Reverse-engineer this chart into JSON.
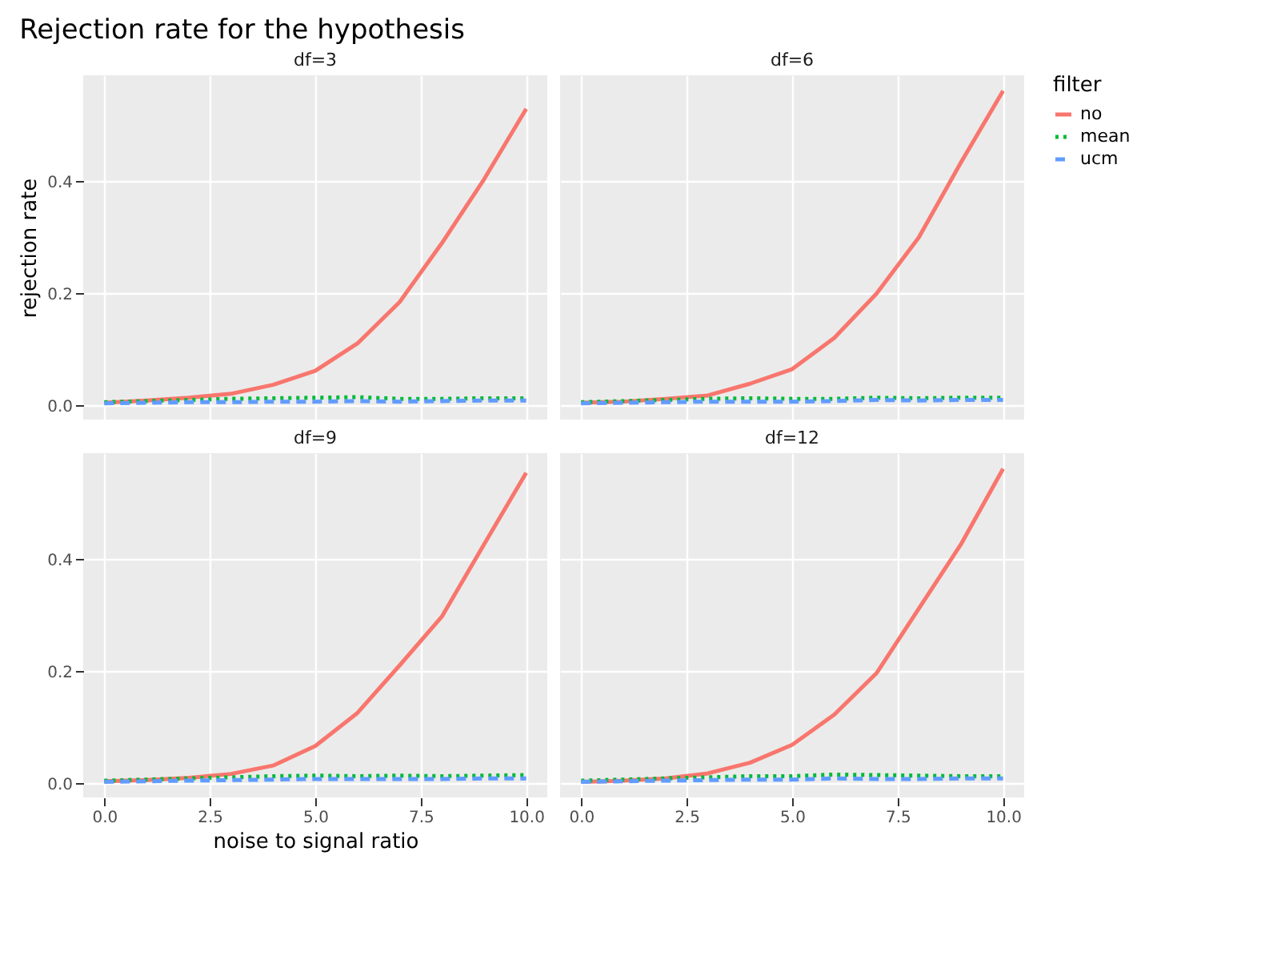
{
  "chart_data": [
    {
      "type": "line",
      "title": "Rejection rate for the hypothesis",
      "subtitle": "df=3",
      "ylabel": "rejection rate",
      "x": [
        0,
        1,
        2,
        3,
        4,
        5,
        6,
        7,
        8,
        9,
        10
      ],
      "xlim": [
        -0.5,
        10.5
      ],
      "ylim": [
        -0.025,
        0.59
      ],
      "xticks": [
        {
          "value": 0,
          "label": null
        },
        {
          "value": 2.5,
          "label": null
        },
        {
          "value": 5,
          "label": null
        },
        {
          "value": 7.5,
          "label": null
        },
        {
          "value": 10,
          "label": null
        }
      ],
      "yticks": [
        {
          "value": 0,
          "label": "0.0"
        },
        {
          "value": 0.2,
          "label": "0.2"
        },
        {
          "value": 0.4,
          "label": "0.4"
        }
      ],
      "grid": true,
      "tick_labels": "y",
      "legend": false,
      "series": [
        {
          "color": "#f8766d",
          "line_style": "solid",
          "values": [
            0.005,
            0.009,
            0.014,
            0.021,
            0.037,
            0.062,
            0.111,
            0.185,
            0.29,
            0.404,
            0.53
          ]
        },
        {
          "color": "#00ba38",
          "line_style": "dotted",
          "values": [
            0.006,
            0.008,
            0.01,
            0.012,
            0.013,
            0.014,
            0.015,
            0.012,
            0.012,
            0.013,
            0.013
          ]
        },
        {
          "color": "#619cff",
          "line_style": "dashed",
          "values": [
            0.004,
            0.005,
            0.006,
            0.006,
            0.007,
            0.007,
            0.008,
            0.007,
            0.008,
            0.009,
            0.009
          ]
        }
      ]
    },
    {
      "type": "line",
      "subtitle": "df=6",
      "x": [
        0,
        1,
        2,
        3,
        4,
        5,
        6,
        7,
        8,
        9,
        10
      ],
      "xlim": [
        -0.5,
        10.5
      ],
      "ylim": [
        -0.025,
        0.59
      ],
      "xticks": [
        {
          "value": 0,
          "label": null
        },
        {
          "value": 2.5,
          "label": null
        },
        {
          "value": 5,
          "label": null
        },
        {
          "value": 7.5,
          "label": null
        },
        {
          "value": 10,
          "label": null
        }
      ],
      "yticks": [
        {
          "value": 0,
          "label": null
        },
        {
          "value": 0.2,
          "label": null
        },
        {
          "value": 0.4,
          "label": null
        }
      ],
      "grid": true,
      "tick_labels": false,
      "legend": "right",
      "legend_title": "filter",
      "series": [
        {
          "name": "no",
          "color": "#f8766d",
          "line_style": "solid",
          "values": [
            0.005,
            0.007,
            0.012,
            0.018,
            0.039,
            0.065,
            0.121,
            0.2,
            0.3,
            0.434,
            0.562
          ]
        },
        {
          "name": "mean",
          "color": "#00ba38",
          "line_style": "dotted",
          "values": [
            0.006,
            0.008,
            0.01,
            0.012,
            0.013,
            0.012,
            0.012,
            0.014,
            0.013,
            0.014,
            0.014
          ]
        },
        {
          "name": "ucm",
          "color": "#619cff",
          "line_style": "dashed",
          "values": [
            0.004,
            0.005,
            0.006,
            0.007,
            0.007,
            0.007,
            0.008,
            0.01,
            0.009,
            0.01,
            0.01
          ]
        }
      ]
    },
    {
      "type": "line",
      "subtitle": "df=9",
      "xlabel": "noise to signal ratio",
      "x": [
        0,
        1,
        2,
        3,
        4,
        5,
        6,
        7,
        8,
        9,
        10
      ],
      "xlim": [
        -0.5,
        10.5
      ],
      "ylim": [
        -0.025,
        0.59
      ],
      "xticks": [
        {
          "value": 0,
          "label": "0.0"
        },
        {
          "value": 2.5,
          "label": "2.5"
        },
        {
          "value": 5,
          "label": "5.0"
        },
        {
          "value": 7.5,
          "label": "7.5"
        },
        {
          "value": 10,
          "label": "10.0"
        }
      ],
      "yticks": [
        {
          "value": 0,
          "label": "0.0"
        },
        {
          "value": 0.2,
          "label": "0.2"
        },
        {
          "value": 0.4,
          "label": "0.4"
        }
      ],
      "grid": true,
      "legend": false,
      "series": [
        {
          "color": "#f8766d",
          "line_style": "solid",
          "values": [
            0.004,
            0.006,
            0.01,
            0.017,
            0.032,
            0.067,
            0.126,
            0.211,
            0.298,
            0.427,
            0.555
          ]
        },
        {
          "color": "#00ba38",
          "line_style": "dotted",
          "values": [
            0.005,
            0.007,
            0.009,
            0.011,
            0.013,
            0.014,
            0.013,
            0.014,
            0.013,
            0.014,
            0.015
          ]
        },
        {
          "color": "#619cff",
          "line_style": "dashed",
          "values": [
            0.003,
            0.004,
            0.005,
            0.006,
            0.007,
            0.008,
            0.008,
            0.008,
            0.008,
            0.009,
            0.009
          ]
        }
      ]
    },
    {
      "type": "line",
      "subtitle": "df=12",
      "x": [
        0,
        1,
        2,
        3,
        4,
        5,
        6,
        7,
        8,
        9,
        10
      ],
      "xlim": [
        -0.5,
        10.5
      ],
      "ylim": [
        -0.025,
        0.59
      ],
      "xticks": [
        {
          "value": 0,
          "label": "0.0"
        },
        {
          "value": 2.5,
          "label": "2.5"
        },
        {
          "value": 5,
          "label": "5.0"
        },
        {
          "value": 7.5,
          "label": "7.5"
        },
        {
          "value": 10,
          "label": "10.0"
        }
      ],
      "yticks": [
        {
          "value": 0,
          "label": null
        },
        {
          "value": 0.2,
          "label": null
        },
        {
          "value": 0.4,
          "label": null
        }
      ],
      "grid": true,
      "tick_labels": "x",
      "legend": false,
      "series": [
        {
          "color": "#f8766d",
          "line_style": "solid",
          "values": [
            0.003,
            0.005,
            0.009,
            0.018,
            0.037,
            0.069,
            0.123,
            0.197,
            0.312,
            0.427,
            0.562
          ]
        },
        {
          "color": "#00ba38",
          "line_style": "dotted",
          "values": [
            0.005,
            0.007,
            0.009,
            0.011,
            0.013,
            0.013,
            0.016,
            0.015,
            0.014,
            0.013,
            0.013
          ]
        },
        {
          "color": "#619cff",
          "line_style": "dashed",
          "values": [
            0.003,
            0.004,
            0.005,
            0.006,
            0.007,
            0.007,
            0.009,
            0.008,
            0.008,
            0.009,
            0.009
          ]
        }
      ]
    }
  ]
}
